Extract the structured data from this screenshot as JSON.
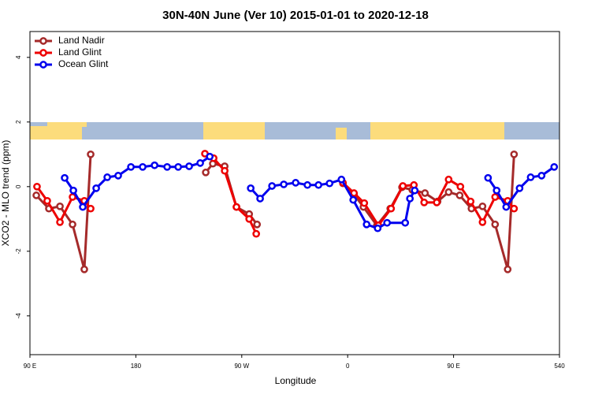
{
  "chart_data": {
    "type": "line",
    "title": "30N-40N June (Ver 10)   2015-01-01 to 2020-12-18",
    "x_label": "Longitude",
    "y_label": "XCO2 - MLO trend (ppm)",
    "xlim": [
      90,
      540
    ],
    "xticks": [
      {
        "value": 90,
        "label": "90 E"
      },
      180,
      {
        "value": 270,
        "label": "90 W"
      },
      {
        "value": 360,
        "label": "0"
      },
      {
        "value": 450,
        "label": "90 E"
      },
      540
    ],
    "ylim": [
      -5.2,
      4.8
    ],
    "yticks": [
      4,
      2,
      0,
      -2,
      -4
    ],
    "legend": "top-left",
    "series": [
      {
        "name": "Land Nadir",
        "color": "#a52a2a",
        "x": [
          95.4,
          106.1,
          115.5,
          126.2,
          136.2,
          141.6,
          null,
          239.4,
          245.4,
          255.5,
          265.5,
          276.3,
          283.0,
          null,
          356.0,
          365.4,
          373.4,
          384.8,
          396.2,
          406.2,
          414.9,
          425.7,
          436.4,
          445.8,
          455.2,
          465.2,
          474.6,
          485.3,
          496.0,
          501.4
        ],
        "values": [
          -0.27,
          -0.68,
          -0.61,
          -1.17,
          -2.56,
          1.0,
          null,
          0.44,
          0.71,
          0.63,
          -0.63,
          -0.85,
          -1.17,
          null,
          0.1,
          -0.24,
          -0.63,
          -1.2,
          -0.68,
          -0.02,
          -0.1,
          -0.2,
          -0.46,
          -0.17,
          -0.27,
          -0.68,
          -0.61,
          -1.17,
          -2.56,
          1.0
        ]
      },
      {
        "name": "Land Glint",
        "color": "#ee0000",
        "x": [
          96.0,
          104.7,
          115.5,
          126.2,
          136.2,
          141.6,
          null,
          238.7,
          246.1,
          255.5,
          265.5,
          276.3,
          282.3,
          null,
          356.0,
          365.4,
          374.1,
          386.1,
          396.9,
          406.9,
          416.3,
          425.0,
          435.7,
          445.8,
          455.8,
          464.5,
          474.6,
          485.3,
          496.0,
          501.4
        ],
        "values": [
          0,
          -0.44,
          -1.1,
          -0.32,
          -0.44,
          -0.68,
          null,
          1.02,
          0.88,
          0.49,
          -0.63,
          -1.0,
          -1.46,
          null,
          0.12,
          -0.2,
          -0.51,
          -1.2,
          -0.68,
          0.02,
          0.05,
          -0.49,
          -0.49,
          0.22,
          0,
          -0.46,
          -1.1,
          -0.32,
          -0.44,
          -0.68
        ]
      },
      {
        "name": "Ocean Glint",
        "color": "#0000ee",
        "x": [
          119.5,
          126.9,
          134.9,
          146.3,
          155.7,
          165.0,
          175.8,
          185.8,
          195.9,
          206.6,
          216.0,
          225.3,
          234.7,
          242.8,
          null,
          277.6,
          285.6,
          295.7,
          305.7,
          315.8,
          325.8,
          335.2,
          344.6,
          354.7,
          364.7,
          376.1,
          385.5,
          393.5,
          408.9,
          412.9,
          417.0,
          null,
          479.3,
          486.6,
          494.7,
          506.1,
          515.5,
          524.8,
          535.5
        ],
        "values": [
          0.27,
          -0.12,
          -0.63,
          -0.05,
          0.29,
          0.34,
          0.61,
          0.61,
          0.66,
          0.61,
          0.61,
          0.63,
          0.73,
          0.93,
          null,
          -0.05,
          -0.37,
          0.02,
          0.07,
          0.12,
          0.05,
          0.05,
          0.1,
          0.22,
          -0.41,
          -1.17,
          -1.29,
          -1.12,
          -1.12,
          -0.37,
          -0.12,
          null,
          0.27,
          -0.12,
          -0.63,
          -0.05,
          0.29,
          0.34,
          0.61
        ]
      }
    ]
  }
}
